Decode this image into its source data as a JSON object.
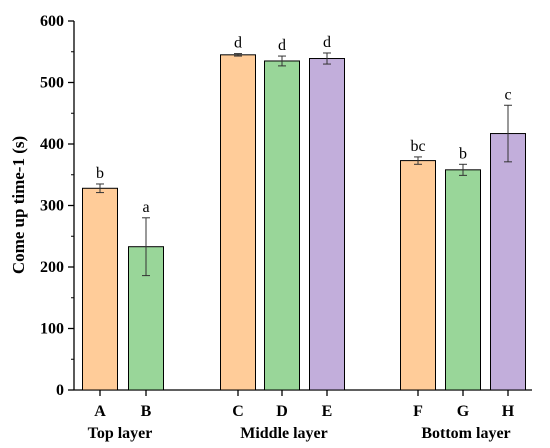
{
  "chart_data": {
    "type": "bar",
    "title": "",
    "xlabel": "",
    "ylabel": "Come up time-1 (s)",
    "ylim": [
      0,
      600
    ],
    "yticks": [
      0,
      100,
      200,
      300,
      400,
      500,
      600
    ],
    "grid": false,
    "legend": "none",
    "groups": [
      {
        "label": "Top layer",
        "categories": [
          "A",
          "B"
        ]
      },
      {
        "label": "Middle layer",
        "categories": [
          "C",
          "D",
          "E"
        ]
      },
      {
        "label": "Bottom layer",
        "categories": [
          "F",
          "G",
          "H"
        ]
      }
    ],
    "bars": [
      {
        "category": "A",
        "value": 328,
        "error": 7,
        "sig": "b",
        "color": "#FFCC99"
      },
      {
        "category": "B",
        "value": 233,
        "error": 47,
        "sig": "a",
        "color": "#99D699"
      },
      {
        "category": "C",
        "value": 545,
        "error": 2,
        "sig": "d",
        "color": "#FFCC99"
      },
      {
        "category": "D",
        "value": 535,
        "error": 8,
        "sig": "d",
        "color": "#99D699"
      },
      {
        "category": "E",
        "value": 539,
        "error": 9,
        "sig": "d",
        "color": "#C2AEDB"
      },
      {
        "category": "F",
        "value": 373,
        "error": 6,
        "sig": "bc",
        "color": "#FFCC99"
      },
      {
        "category": "G",
        "value": 358,
        "error": 9,
        "sig": "b",
        "color": "#99D699"
      },
      {
        "category": "H",
        "value": 417,
        "error": 46,
        "sig": "c",
        "color": "#C2AEDB"
      }
    ]
  }
}
